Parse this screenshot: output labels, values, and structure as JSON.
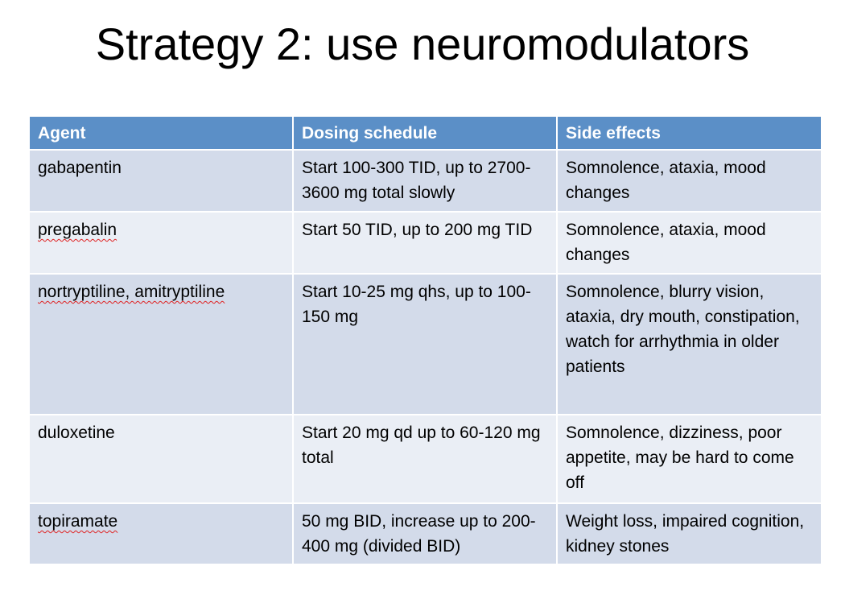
{
  "title": "Strategy 2: use neuromodulators",
  "table": {
    "header": [
      "Agent",
      "Dosing schedule",
      "Side effects"
    ],
    "rows": [
      [
        "gabapentin",
        "Start 100-300 TID, up to 2700-3600 mg total slowly",
        "Somnolence, ataxia, mood changes"
      ],
      [
        "pregabalin",
        "Start 50 TID, up to 200 mg TID",
        "Somnolence, ataxia, mood changes"
      ],
      [
        "nortryptiline, amitryptiline",
        "Start 10-25 mg qhs, up to 100-150 mg",
        "Somnolence, blurry vision, ataxia, dry mouth, constipation, watch for arrhythmia in older patients"
      ],
      [
        "duloxetine",
        "Start 20 mg qd up to 60-120 mg total",
        "Somnolence, dizziness, poor appetite, may be hard to come off"
      ],
      [
        "topiramate",
        "50 mg BID, increase up to 200-400 mg (divided BID)",
        "Weight loss, impaired cognition, kidney stones"
      ]
    ]
  }
}
